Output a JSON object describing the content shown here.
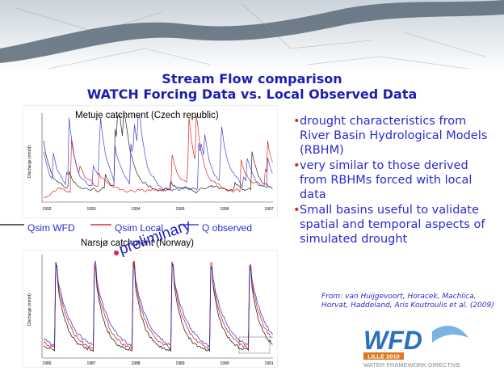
{
  "header": {
    "title": "Stream Flow comparison",
    "subtitle": "WATCH Forcing Data vs. Local Observed Data"
  },
  "charts": [
    {
      "title": "Metuje catchment (Czech republic)",
      "y_label": "Discharge (mm/d)",
      "x_labels": [
        "1992",
        "1993",
        "1994",
        "1995",
        "1996",
        "1997"
      ]
    },
    {
      "title": "Narsjø catchment (Norway)",
      "y_label": "Discharge (mm/d)",
      "x_labels": [
        "1986",
        "1987",
        "1988",
        "1989",
        "1990",
        "1991"
      ]
    }
  ],
  "legend": [
    "Qsim WFD",
    "Qsim Local",
    "Q observed"
  ],
  "watermark": "preliminary",
  "bullets": [
    "drought characteristics from River Basin Hydrological Models (RBHM)",
    "very similar to those derived from RBHMs forced with local data",
    "Small basins useful to validate spatial and temporal aspects of simulated drought"
  ],
  "citation": "From: van Huijgevoort, Horacek, Machlica, Horvat, Haddeland, Aris Koutroulis et al. (2009)",
  "logo": {
    "name": "WFD",
    "event": "LILLE 2010",
    "tagline": "WATER FRAMEWORK DIRECTIVE"
  }
}
